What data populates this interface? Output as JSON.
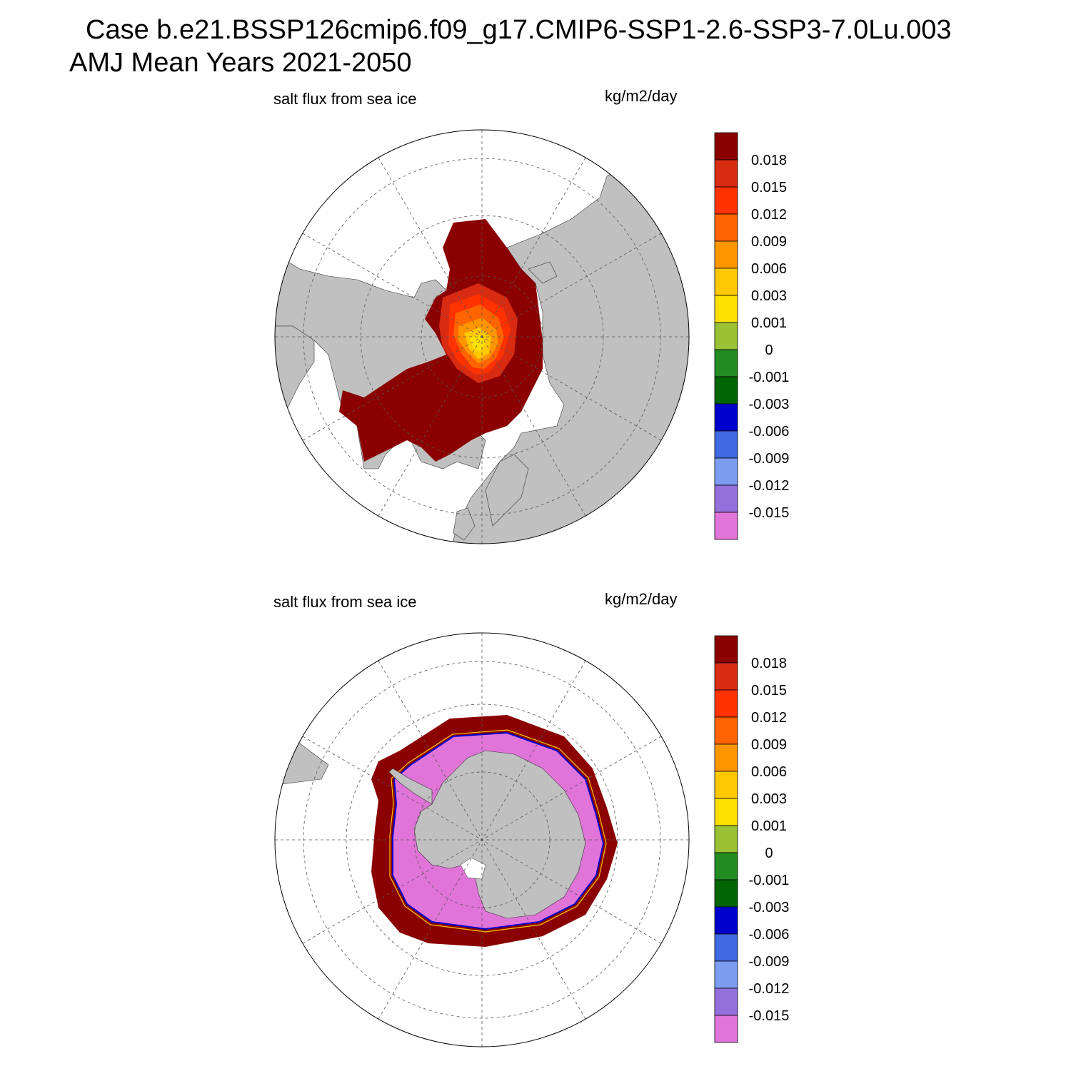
{
  "header": {
    "title_line1": "Case b.e21.BSSP126cmip6.f09_g17.CMIP6-SSP1-2.6-SSP3-7.0Lu.003",
    "title_line2": "AMJ Mean   Years 2021-2050"
  },
  "panels": [
    {
      "id": "north",
      "hemisphere": "Arctic (North Polar Stereographic)",
      "title_left": "salt flux from sea ice",
      "title_right": "kg/m2/day"
    },
    {
      "id": "south",
      "hemisphere": "Antarctic (South Polar Stereographic)",
      "title_left": "salt flux from sea ice",
      "title_right": "kg/m2/day"
    }
  ],
  "colorbar": {
    "levels": [
      "0.018",
      "0.015",
      "0.012",
      "0.009",
      "0.006",
      "0.003",
      "0.001",
      "0",
      "-0.001",
      "-0.003",
      "-0.006",
      "-0.009",
      "-0.012",
      "-0.015"
    ],
    "colors": [
      "#8b0000",
      "#d92b12",
      "#ff3200",
      "#ff6400",
      "#ff9600",
      "#ffc800",
      "#ffe100",
      "#9ac234",
      "#228b22",
      "#006400",
      "#0000cd",
      "#4169e1",
      "#7b9cf0",
      "#9370db",
      "#e174d9"
    ]
  },
  "map_colors": {
    "land": "#c0c0c0",
    "ocean": "#ffffff",
    "grid": "#555555"
  }
}
